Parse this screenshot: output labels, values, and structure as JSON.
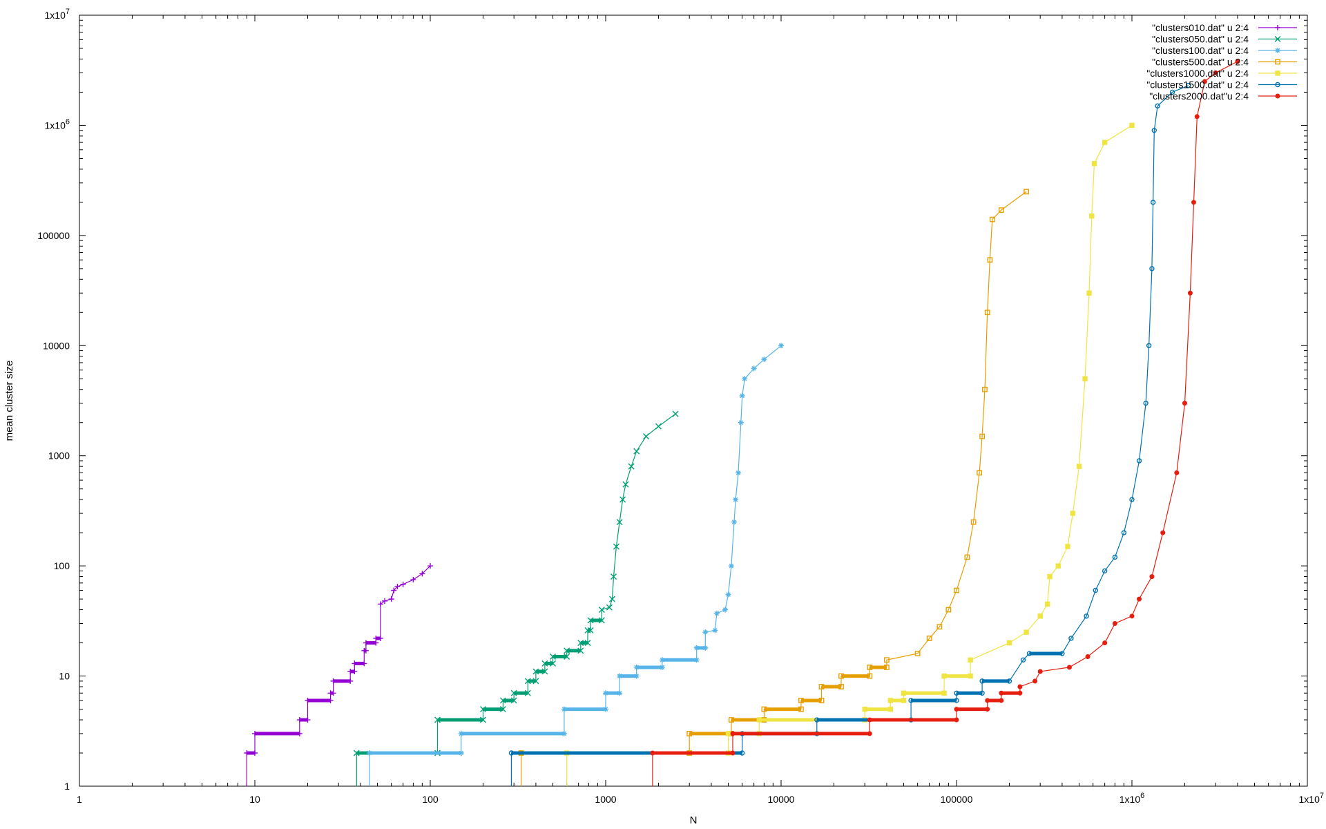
{
  "chart_data": {
    "type": "line",
    "title": "",
    "xlabel": "N",
    "ylabel": "mean cluster size",
    "xscale": "log",
    "yscale": "log",
    "xlim": [
      1,
      10000000
    ],
    "ylim": [
      1,
      10000000
    ],
    "grid": false,
    "legend_position": "top-right",
    "x_ticks": [
      {
        "value": 1,
        "label": "1"
      },
      {
        "value": 10,
        "label": "10"
      },
      {
        "value": 100,
        "label": "100"
      },
      {
        "value": 1000,
        "label": "1000"
      },
      {
        "value": 10000,
        "label": "10000"
      },
      {
        "value": 100000,
        "label": "100000"
      },
      {
        "value": 1000000,
        "label": "1x10^6"
      },
      {
        "value": 10000000,
        "label": "1x10^7"
      }
    ],
    "y_ticks": [
      {
        "value": 1,
        "label": "1"
      },
      {
        "value": 10,
        "label": "10"
      },
      {
        "value": 100,
        "label": "100"
      },
      {
        "value": 1000,
        "label": "1000"
      },
      {
        "value": 10000,
        "label": "10000"
      },
      {
        "value": 100000,
        "label": "100000"
      },
      {
        "value": 1000000,
        "label": "1x10^6"
      },
      {
        "value": 10000000,
        "label": "1x10^7"
      }
    ],
    "series": [
      {
        "name": "\"clusters010.dat\" u 2:4",
        "color": "#9400d3",
        "marker": "plus",
        "points": [
          [
            9,
            1
          ],
          [
            9,
            2
          ],
          [
            10,
            2
          ],
          [
            10,
            3
          ],
          [
            18,
            3
          ],
          [
            18,
            4
          ],
          [
            20,
            4
          ],
          [
            20,
            6
          ],
          [
            27,
            6
          ],
          [
            27,
            7
          ],
          [
            28,
            7
          ],
          [
            28,
            9
          ],
          [
            35,
            9
          ],
          [
            35,
            11
          ],
          [
            37,
            11
          ],
          [
            37,
            13
          ],
          [
            42,
            13
          ],
          [
            42,
            17
          ],
          [
            43,
            17
          ],
          [
            43,
            20
          ],
          [
            49,
            20
          ],
          [
            49,
            22
          ],
          [
            52,
            22
          ],
          [
            52,
            45
          ],
          [
            55,
            48
          ],
          [
            60,
            50
          ],
          [
            62,
            60
          ],
          [
            65,
            65
          ],
          [
            70,
            68
          ],
          [
            80,
            75
          ],
          [
            90,
            85
          ],
          [
            100,
            100
          ]
        ]
      },
      {
        "name": "\"clusters050.dat\" u 2:4",
        "color": "#009e73",
        "marker": "x",
        "points": [
          [
            38,
            1
          ],
          [
            38,
            2
          ],
          [
            110,
            2
          ],
          [
            110,
            4
          ],
          [
            200,
            4
          ],
          [
            200,
            5
          ],
          [
            260,
            5
          ],
          [
            260,
            6
          ],
          [
            300,
            6
          ],
          [
            300,
            7
          ],
          [
            360,
            7
          ],
          [
            360,
            9
          ],
          [
            400,
            9
          ],
          [
            400,
            11
          ],
          [
            450,
            11
          ],
          [
            450,
            13
          ],
          [
            500,
            13
          ],
          [
            500,
            15
          ],
          [
            600,
            15
          ],
          [
            600,
            17
          ],
          [
            720,
            17
          ],
          [
            720,
            20
          ],
          [
            790,
            20
          ],
          [
            790,
            26
          ],
          [
            820,
            26
          ],
          [
            820,
            32
          ],
          [
            950,
            32
          ],
          [
            950,
            40
          ],
          [
            1050,
            42
          ],
          [
            1090,
            50
          ],
          [
            1110,
            80
          ],
          [
            1150,
            150
          ],
          [
            1200,
            250
          ],
          [
            1250,
            400
          ],
          [
            1300,
            550
          ],
          [
            1400,
            800
          ],
          [
            1500,
            1100
          ],
          [
            1700,
            1500
          ],
          [
            2000,
            1850
          ],
          [
            2500,
            2400
          ]
        ]
      },
      {
        "name": "\"clusters100.dat\" u 2:4",
        "color": "#56b4e9",
        "marker": "asterisk",
        "points": [
          [
            45,
            1
          ],
          [
            45,
            2
          ],
          [
            150,
            2
          ],
          [
            150,
            3
          ],
          [
            580,
            3
          ],
          [
            580,
            5
          ],
          [
            1000,
            5
          ],
          [
            1000,
            7
          ],
          [
            1200,
            7
          ],
          [
            1200,
            10
          ],
          [
            1500,
            10
          ],
          [
            1500,
            12
          ],
          [
            2100,
            12
          ],
          [
            2100,
            14
          ],
          [
            3300,
            14
          ],
          [
            3300,
            18
          ],
          [
            3700,
            18
          ],
          [
            3700,
            25
          ],
          [
            4200,
            26
          ],
          [
            4300,
            37
          ],
          [
            4800,
            40
          ],
          [
            5000,
            55
          ],
          [
            5200,
            100
          ],
          [
            5400,
            250
          ],
          [
            5500,
            400
          ],
          [
            5700,
            700
          ],
          [
            5900,
            2000
          ],
          [
            6000,
            3500
          ],
          [
            6200,
            5000
          ],
          [
            7000,
            6200
          ],
          [
            8000,
            7500
          ],
          [
            10000,
            10000
          ]
        ]
      },
      {
        "name": "\"clusters500.dat\" u 2:4",
        "color": "#e69f00",
        "marker": "square",
        "points": [
          [
            330,
            1
          ],
          [
            330,
            2
          ],
          [
            3000,
            2
          ],
          [
            3000,
            3
          ],
          [
            5200,
            3
          ],
          [
            5200,
            4
          ],
          [
            8000,
            4
          ],
          [
            8000,
            5
          ],
          [
            13000,
            5
          ],
          [
            13000,
            6
          ],
          [
            17000,
            6
          ],
          [
            17000,
            8
          ],
          [
            22000,
            8
          ],
          [
            22000,
            10
          ],
          [
            32000,
            10
          ],
          [
            32000,
            12
          ],
          [
            40000,
            12
          ],
          [
            40000,
            14
          ],
          [
            60000,
            16
          ],
          [
            70000,
            22
          ],
          [
            80000,
            28
          ],
          [
            90000,
            40
          ],
          [
            100000,
            60
          ],
          [
            115000,
            120
          ],
          [
            125000,
            250
          ],
          [
            135000,
            700
          ],
          [
            140000,
            1500
          ],
          [
            145000,
            4000
          ],
          [
            150000,
            20000
          ],
          [
            155000,
            60000
          ],
          [
            160000,
            140000
          ],
          [
            180000,
            170000
          ],
          [
            250000,
            250000
          ]
        ]
      },
      {
        "name": "\"clusters1000.dat\" u 2:4",
        "color": "#f0e442",
        "marker": "filled-square",
        "points": [
          [
            600,
            1
          ],
          [
            600,
            2
          ],
          [
            5000,
            2
          ],
          [
            5000,
            3
          ],
          [
            7500,
            3
          ],
          [
            7500,
            4
          ],
          [
            30000,
            4
          ],
          [
            30000,
            5
          ],
          [
            42000,
            5
          ],
          [
            42000,
            6
          ],
          [
            50000,
            6
          ],
          [
            50000,
            7
          ],
          [
            85000,
            7
          ],
          [
            85000,
            10
          ],
          [
            120000,
            10
          ],
          [
            120000,
            14
          ],
          [
            200000,
            20
          ],
          [
            250000,
            25
          ],
          [
            300000,
            35
          ],
          [
            330000,
            45
          ],
          [
            340000,
            80
          ],
          [
            380000,
            100
          ],
          [
            430000,
            150
          ],
          [
            460000,
            300
          ],
          [
            500000,
            800
          ],
          [
            540000,
            5000
          ],
          [
            570000,
            30000
          ],
          [
            590000,
            150000
          ],
          [
            610000,
            450000
          ],
          [
            700000,
            700000
          ],
          [
            1000000,
            1000000
          ]
        ]
      },
      {
        "name": "\"clusters1500.dat\" u 2:4",
        "color": "#0072b2",
        "marker": "circle",
        "points": [
          [
            290,
            1
          ],
          [
            290,
            2
          ],
          [
            6000,
            2
          ],
          [
            6000,
            3
          ],
          [
            16000,
            3
          ],
          [
            16000,
            4
          ],
          [
            55000,
            4
          ],
          [
            55000,
            6
          ],
          [
            100000,
            6
          ],
          [
            100000,
            7
          ],
          [
            140000,
            7
          ],
          [
            140000,
            9
          ],
          [
            200000,
            9
          ],
          [
            240000,
            14
          ],
          [
            260000,
            16
          ],
          [
            400000,
            16
          ],
          [
            450000,
            22
          ],
          [
            550000,
            35
          ],
          [
            620000,
            60
          ],
          [
            700000,
            90
          ],
          [
            800000,
            120
          ],
          [
            900000,
            200
          ],
          [
            1000000,
            400
          ],
          [
            1100000,
            900
          ],
          [
            1200000,
            3000
          ],
          [
            1250000,
            10000
          ],
          [
            1300000,
            50000
          ],
          [
            1320000,
            200000
          ],
          [
            1340000,
            900000
          ],
          [
            1400000,
            1500000
          ],
          [
            1700000,
            2000000
          ],
          [
            2100000,
            2300000
          ]
        ]
      },
      {
        "name": "\"clusters2000.dat\"u 2:4",
        "color": "#e51e10",
        "marker": "filled-circle",
        "points": [
          [
            1850,
            1
          ],
          [
            1850,
            2
          ],
          [
            5300,
            2
          ],
          [
            5300,
            3
          ],
          [
            32000,
            3
          ],
          [
            32000,
            4
          ],
          [
            100000,
            4
          ],
          [
            100000,
            5
          ],
          [
            150000,
            5
          ],
          [
            150000,
            6
          ],
          [
            180000,
            6
          ],
          [
            180000,
            7
          ],
          [
            230000,
            7
          ],
          [
            230000,
            8
          ],
          [
            280000,
            9
          ],
          [
            300000,
            11
          ],
          [
            440000,
            12
          ],
          [
            560000,
            15
          ],
          [
            700000,
            20
          ],
          [
            800000,
            30
          ],
          [
            1000000,
            35
          ],
          [
            1100000,
            50
          ],
          [
            1300000,
            80
          ],
          [
            1500000,
            200
          ],
          [
            1800000,
            700
          ],
          [
            2000000,
            3000
          ],
          [
            2150000,
            30000
          ],
          [
            2250000,
            200000
          ],
          [
            2350000,
            1200000
          ],
          [
            2600000,
            2500000
          ],
          [
            3000000,
            3000000
          ],
          [
            4000000,
            3800000
          ]
        ]
      }
    ]
  }
}
